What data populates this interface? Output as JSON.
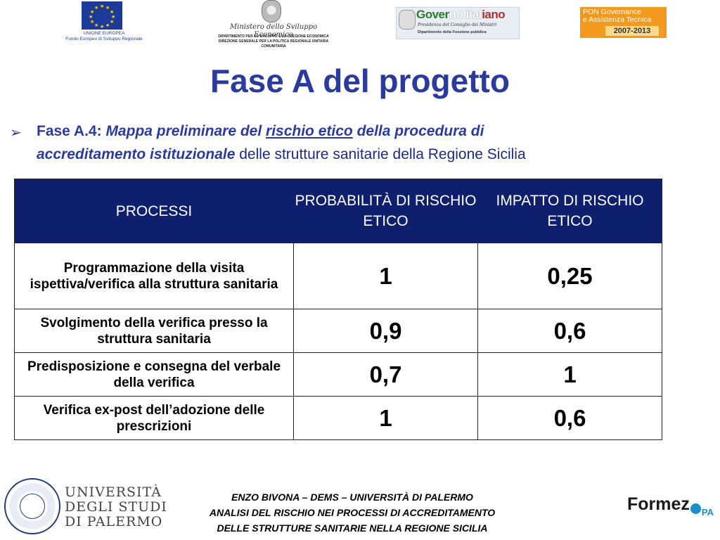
{
  "header": {
    "eu_logo": {
      "text_line1": "UNIONE EUROPEA",
      "text_line2": "Fondo Europeo di Sviluppo Regionale"
    },
    "mse_logo": {
      "name": "Ministero dello Sviluppo Economico",
      "line1": "DIPARTIMENTO PER LO SVILUPPO E LA COESIONE ECONOMICA",
      "line2": "DIREZIONE GENERALE PER LA POLITICA REGIONALE UNITARIA COMUNITARIA"
    },
    "gov_logo": {
      "title_a": "Gover",
      "title_b": "no ital",
      "title_c": "iano",
      "sub1": "Presidenza del Consiglio dei Ministri",
      "sub2": "Dipartimento della Funzione pubblica"
    },
    "pon_logo": {
      "line1": "PON Governance",
      "line2": "e Assistenza Tecnica",
      "years": "2007-2013"
    }
  },
  "title": "Fase A del progetto",
  "intro": {
    "label": "Fase A.4:",
    "italic1": "Mappa preliminare del",
    "underlined": "rischio etico",
    "italic2": "della procedura di",
    "italic3": "accreditamento istituzionale",
    "plain": "delle strutture sanitarie della Regione Sicilia"
  },
  "table": {
    "headers": [
      "PROCESSI",
      "PROBABILITÀ DI RISCHIO ETICO",
      "IMPATTO DI RISCHIO ETICO"
    ],
    "rows": [
      {
        "process": "Programmazione della visita ispettiva/verifica alla struttura sanitaria",
        "prob": "1",
        "impact": "0,25"
      },
      {
        "process": "Svolgimento della verifica presso la struttura sanitaria",
        "prob": "0,9",
        "impact": "0,6"
      },
      {
        "process": "Predisposizione e consegna del verbale della verifica",
        "prob": "0,7",
        "impact": "1"
      },
      {
        "process": "Verifica ex-post dell’adozione delle prescrizioni",
        "prob": "1",
        "impact": "0,6"
      }
    ]
  },
  "footer": {
    "university": {
      "line1": "UNIVERSITÀ",
      "line2": "DEGLI STUDI",
      "line3": "DI PALERMO"
    },
    "author": "ENZO BIVONA – DEMS – UNIVERSITÀ DI PALERMO",
    "subtitle1": "ANALISI DEL RISCHIO NEI PROCESSI DI ACCREDITAMENTO",
    "subtitle2": "DELLE STRUTTURE SANITARIE NELLA REGIONE SICILIA",
    "formez": {
      "name": "Formez",
      "suffix": "PA"
    }
  },
  "colors": {
    "title_blue": "#2a3b9c",
    "table_header": "#0e1f6e",
    "pon_orange": "#f39a1e"
  }
}
